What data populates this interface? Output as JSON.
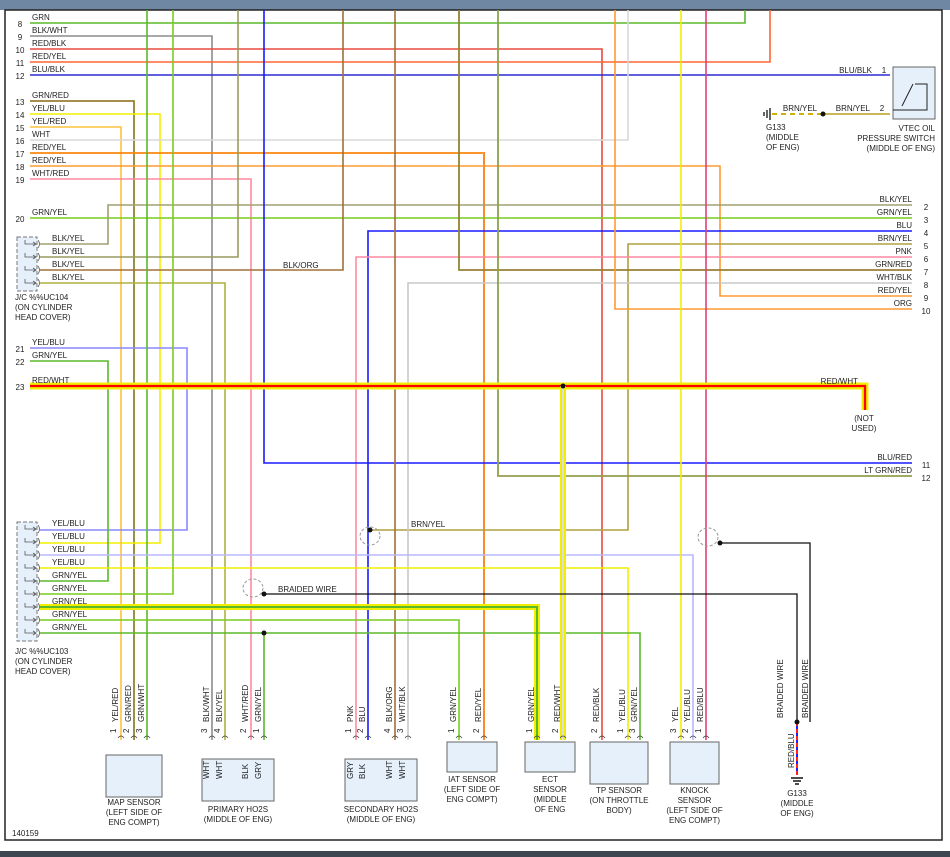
{
  "figure_id": "140159",
  "left_rows": [
    {
      "pin": "8",
      "label": "GRN"
    },
    {
      "pin": "9",
      "label": "BLK/WHT"
    },
    {
      "pin": "10",
      "label": "RED/BLK"
    },
    {
      "pin": "11",
      "label": "RED/YEL"
    },
    {
      "pin": "12",
      "label": "BLU/BLK"
    },
    {
      "pin": "13",
      "label": "GRN/RED"
    },
    {
      "pin": "14",
      "label": "YEL/BLU"
    },
    {
      "pin": "15",
      "label": "YEL/RED"
    },
    {
      "pin": "16",
      "label": "WHT"
    },
    {
      "pin": "17",
      "label": "RED/YEL"
    },
    {
      "pin": "18",
      "label": "RED/YEL"
    },
    {
      "pin": "19",
      "label": "WHT/RED"
    },
    {
      "pin": "20",
      "label": "GRN/YEL"
    },
    {
      "pin": "21",
      "label": "YEL/BLU"
    },
    {
      "pin": "22",
      "label": "GRN/YEL"
    },
    {
      "pin": "23",
      "label": "RED/WHT"
    }
  ],
  "right_rows": [
    {
      "pin": "2",
      "label": "BLK/YEL"
    },
    {
      "pin": "3",
      "label": "GRN/YEL"
    },
    {
      "pin": "4",
      "label": "BLU"
    },
    {
      "pin": "5",
      "label": "BRN/YEL"
    },
    {
      "pin": "6",
      "label": "PNK"
    },
    {
      "pin": "7",
      "label": "GRN/RED"
    },
    {
      "pin": "8",
      "label": "WHT/BLK"
    },
    {
      "pin": "9",
      "label": "RED/YEL"
    },
    {
      "pin": "10",
      "label": "ORG"
    },
    {
      "pin": "11",
      "label": "BLU/RED"
    },
    {
      "pin": "12",
      "label": "LT GRN/RED"
    }
  ],
  "jc104": {
    "rows": [
      "BLK/YEL",
      "BLK/YEL",
      "BLK/YEL",
      "BLK/YEL"
    ],
    "title": [
      "J/C %%UC104",
      "(ON CYLINDER",
      "HEAD COVER)"
    ]
  },
  "jc103": {
    "rows": [
      "YEL/BLU",
      "YEL/BLU",
      "YEL/BLU",
      "YEL/BLU",
      "GRN/YEL",
      "GRN/YEL",
      "GRN/YEL",
      "GRN/YEL",
      "GRN/YEL"
    ],
    "title": [
      "J/C %%UC103",
      "(ON CYLINDER",
      "HEAD COVER)"
    ]
  },
  "vtec": {
    "pin1": "1",
    "pin1_wire": "BLU/BLK",
    "pin2": "2",
    "pin2_wire": "BRN/YEL",
    "ground_wire": "BRN/YEL",
    "title": [
      "VTEC OIL",
      "PRESSURE SWITCH",
      "(MIDDLE OF ENG)"
    ],
    "ground": [
      "G133",
      "(MIDDLE",
      "OF ENG)"
    ]
  },
  "wire_labels": {
    "blk_org": "BLK/ORG",
    "brn_yel": "BRN/YEL",
    "braided": "BRAIDED WIRE",
    "red_wht": "RED/WHT",
    "not_used": [
      "(NOT",
      "USED)"
    ],
    "braided_v1": "BRAIDED WIRE",
    "braided_v2": "BRAIDED WIRE",
    "red_blu": "RED/BLU"
  },
  "ground_g133": [
    "G133",
    "(MIDDLE",
    "OF ENG)"
  ],
  "components": [
    {
      "title": [
        "MAP SENSOR",
        "(LEFT SIDE OF",
        "ENG COMPT)"
      ],
      "pins": [
        {
          "n": "1",
          "w": "YEL/RED"
        },
        {
          "n": "2",
          "w": "GRN/RED"
        },
        {
          "n": "3",
          "w": "GRN/WHT"
        }
      ]
    },
    {
      "title": [
        "PRIMARY HO2S",
        "(MIDDLE OF ENG)"
      ],
      "pins": [
        {
          "n": "3",
          "w": "BLK/WHT",
          "i": "WHT"
        },
        {
          "n": "4",
          "w": "BLK/YEL",
          "i": "WHT"
        },
        {
          "n": "2",
          "w": "WHT/RED",
          "i": "BLK"
        },
        {
          "n": "1",
          "w": "GRN/YEL",
          "i": "GRY"
        }
      ]
    },
    {
      "title": [
        "SECONDARY HO2S",
        "(MIDDLE OF ENG)"
      ],
      "pins": [
        {
          "n": "1",
          "w": "PNK",
          "i": "GRY"
        },
        {
          "n": "2",
          "w": "BLU",
          "i": "BLK"
        },
        {
          "n": "4",
          "w": "BLK/ORG",
          "i": "WHT"
        },
        {
          "n": "3",
          "w": "WHT/BLK",
          "i": "WHT"
        }
      ]
    },
    {
      "title": [
        "IAT SENSOR",
        "(LEFT SIDE OF",
        "ENG COMPT)"
      ],
      "pins": [
        {
          "n": "1",
          "w": "GRN/YEL"
        },
        {
          "n": "2",
          "w": "RED/YEL"
        }
      ]
    },
    {
      "title": [
        "ECT",
        "SENSOR",
        "(MIDDLE",
        "OF ENG"
      ],
      "pins": [
        {
          "n": "1",
          "w": "GRN/YEL"
        },
        {
          "n": "2",
          "w": "RED/WHT"
        }
      ]
    },
    {
      "title": [
        "TP SENSOR",
        "(ON THROTTLE",
        "BODY)"
      ],
      "pins": [
        {
          "n": "2",
          "w": "RED/BLK"
        },
        {
          "n": "1",
          "w": "YEL/BLU"
        },
        {
          "n": "3",
          "w": "GRN/YEL"
        }
      ]
    },
    {
      "title": [
        "KNOCK",
        "SENSOR",
        "(LEFT SIDE OF",
        "ENG COMPT)"
      ],
      "pins": [
        {
          "n": "3",
          "w": "YEL"
        },
        {
          "n": "2",
          "w": "YEL/BLU"
        },
        {
          "n": "1",
          "w": "RED/BLU"
        }
      ]
    }
  ],
  "wire_colors": {
    "GRN": "#5ab82b",
    "BLK/WHT": "#8c8c8c",
    "RED/BLK": "#e84a3e",
    "RED/YEL": "#ff6633",
    "BLU/BLK": "#2b2bd6",
    "GRN/RED": "#4caf2a",
    "YEL": "#f2ee00",
    "YEL/RED": "#ffc040",
    "WHT": "#d8d8d8",
    "ORG": "#ff9a30",
    "PNK": "#ff8aa0",
    "GRN/YEL": "#7acc20",
    "BLK/YEL": "#a0a070",
    "BRN": "#a0703a",
    "BRN/YEL": "#b0a040",
    "BLU": "#1a1aff",
    "WHT/BLK": "#c8c8c8",
    "LT GRN": "#40cc40",
    "YEL/BLU": "#8888ff",
    "RED/BLU": "#e0407a",
    "BLACK": "#111111",
    "RED_THICK": "#ff0000"
  }
}
